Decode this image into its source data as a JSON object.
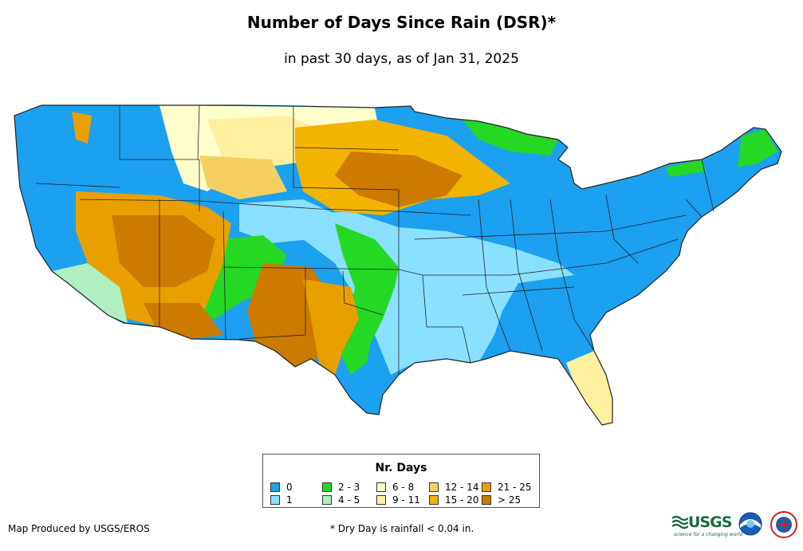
{
  "title": "Number of Days Since Rain (DSR)*",
  "subtitle": "in past 30 days, as of Jan 31, 2025",
  "legend": {
    "title": "Nr. Days",
    "items": [
      {
        "label": "0",
        "color": "#1ca0f0"
      },
      {
        "label": "1",
        "color": "#8ae0ff"
      },
      {
        "label": "2 - 3",
        "color": "#24d824"
      },
      {
        "label": "4 - 5",
        "color": "#b0f0c0"
      },
      {
        "label": "6 - 8",
        "color": "#ffffcc"
      },
      {
        "label": "9 - 11",
        "color": "#fff0a0"
      },
      {
        "label": "12 - 14",
        "color": "#f5d060"
      },
      {
        "label": "15 - 20",
        "color": "#f2b400"
      },
      {
        "label": "21 - 25",
        "color": "#e8a000"
      },
      {
        "label": "> 25",
        "color": "#cc7a00"
      }
    ]
  },
  "credit": "Map Produced by USGS/EROS",
  "note": "* Dry Day is rainfall < 0.04 in.",
  "logos": {
    "usgs": "USGS",
    "usgs_tagline": "science for a changing world"
  }
}
